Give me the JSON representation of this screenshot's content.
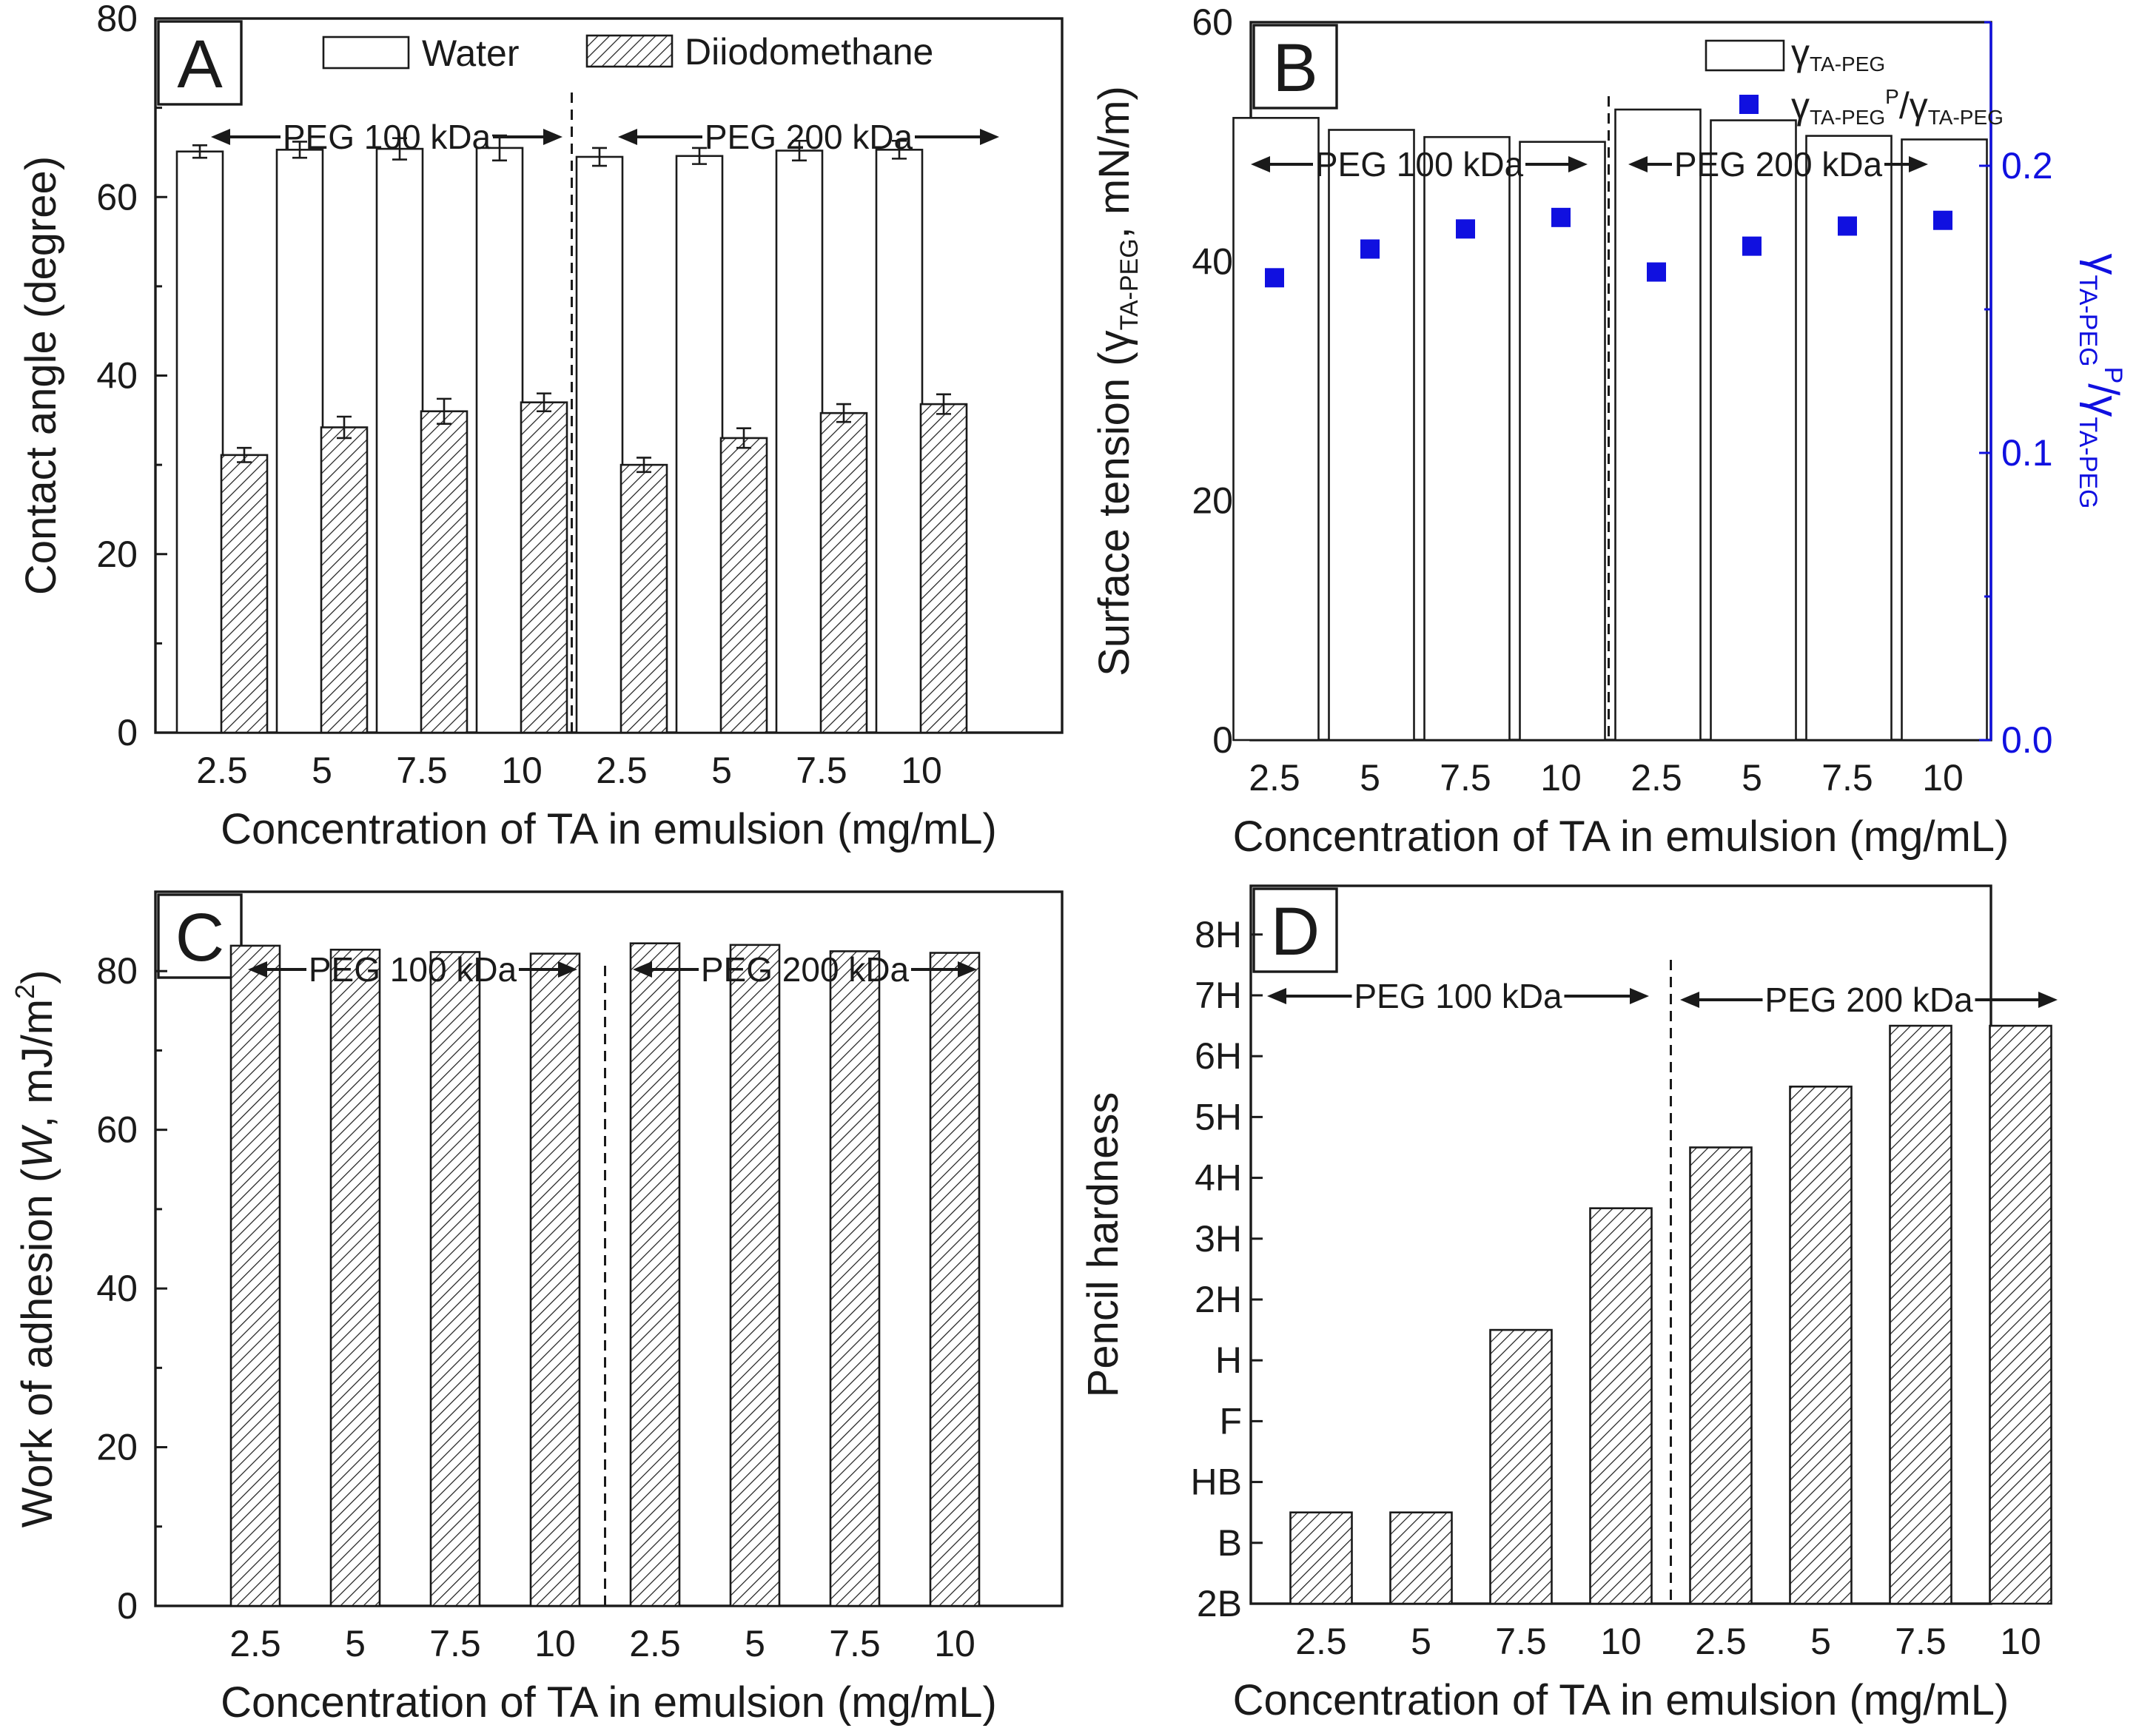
{
  "chart_data": [
    {
      "panel": "A",
      "type": "bar",
      "categories": [
        "2.5",
        "5",
        "7.5",
        "10",
        "2.5",
        "5",
        "7.5",
        "10"
      ],
      "series": [
        {
          "name": "Water",
          "values": [
            65.1,
            65.3,
            65.4,
            65.5,
            64.5,
            64.6,
            65.2,
            65.3
          ],
          "errors": [
            0.7,
            0.9,
            1.2,
            1.4,
            1.0,
            0.9,
            1.1,
            1.0
          ],
          "pattern": "open"
        },
        {
          "name": "Diiodomethane",
          "values": [
            31.1,
            34.2,
            36.0,
            37.0,
            30.0,
            33.0,
            35.8,
            36.8
          ],
          "errors": [
            0.8,
            1.2,
            1.4,
            1.0,
            0.8,
            1.1,
            1.0,
            1.1
          ],
          "pattern": "hatched"
        }
      ],
      "xlabel": "Concentration of TA in emulsion (mg/mL)",
      "ylabel": "Contact angle (degree)",
      "ylim": [
        0,
        80
      ],
      "yticks": [
        "0",
        "20",
        "40",
        "60",
        "80"
      ],
      "groups": [
        "PEG 100 kDa",
        "PEG 200 kDa"
      ]
    },
    {
      "panel": "B",
      "type": "bar",
      "categories": [
        "2.5",
        "5",
        "7.5",
        "10",
        "2.5",
        "5",
        "7.5",
        "10"
      ],
      "series": [
        {
          "name": "γTA-PEG",
          "values": [
            52.0,
            51.0,
            50.4,
            50.0,
            52.7,
            51.8,
            50.5,
            50.2
          ],
          "pattern": "open",
          "axis": "left"
        },
        {
          "name": "γTA-PEG P/γTA-PEG",
          "values": [
            0.161,
            0.171,
            0.178,
            0.182,
            0.163,
            0.172,
            0.179,
            0.181
          ],
          "marker": "square",
          "color": "#1010e0",
          "axis": "right"
        }
      ],
      "legend": {
        "bar": "γ",
        "bar_sub": "TA-PEG",
        "mk1": "γ",
        "mk1_sub": "TA-PEG",
        "mk1_sup": "P",
        "mk_slash": "/",
        "mk2": "γ",
        "mk2_sub": "TA-PEG"
      },
      "xlabel": "Concentration of TA in emulsion (mg/mL)",
      "ylabel_left": {
        "pre": "Surface tension (",
        "sym": "γ",
        "sub": "TA-PEG",
        "post": ", mN/m)"
      },
      "ylabel_right": {
        "sym1": "γ",
        "sub1": "TA-PEG",
        "sup1": "P",
        "slash": "/",
        "sym2": "γ",
        "sub2": "TA-PEG"
      },
      "ylim": [
        0,
        60
      ],
      "y2lim": [
        0.0,
        0.25
      ],
      "yticks": [
        "0",
        "20",
        "40",
        "60"
      ],
      "y2ticks": [
        "0.0",
        "0.1",
        "0.2"
      ],
      "groups": [
        "PEG 100 kDa",
        "PEG 200 kDa"
      ]
    },
    {
      "panel": "C",
      "type": "bar",
      "categories": [
        "2.5",
        "5",
        "7.5",
        "10",
        "2.5",
        "5",
        "7.5",
        "10"
      ],
      "series": [
        {
          "name": "Work of adhesion",
          "values": [
            83.2,
            82.7,
            82.4,
            82.2,
            83.5,
            83.3,
            82.5,
            82.3
          ],
          "pattern": "hatched"
        }
      ],
      "xlabel": "Concentration of TA in emulsion (mg/mL)",
      "ylabel": {
        "pre": "Work of adhesion (",
        "sym": "W",
        "mid": ", mJ/m",
        "sup": "2",
        "post": ")"
      },
      "ylim": [
        0,
        90
      ],
      "yticks": [
        "0",
        "20",
        "40",
        "60",
        "80"
      ],
      "groups": [
        "PEG 100 kDa",
        "PEG 200 kDa"
      ]
    },
    {
      "panel": "D",
      "type": "bar",
      "categories": [
        "2.5",
        "5",
        "7.5",
        "10",
        "2.5",
        "5",
        "7.5",
        "10"
      ],
      "series": [
        {
          "name": "Pencil hardness",
          "values": [
            1.5,
            1.5,
            4.5,
            6.5,
            7.5,
            8.5,
            9.5,
            9.5
          ],
          "pattern": "hatched"
        }
      ],
      "xlabel": "Concentration of TA in emulsion (mg/mL)",
      "ylabel": "Pencil hardness",
      "ylim": [
        0,
        11.8
      ],
      "yticks": [
        "2B",
        "B",
        "HB",
        "F",
        "H",
        "2H",
        "3H",
        "4H",
        "5H",
        "6H",
        "7H",
        "8H"
      ],
      "groups": [
        "PEG 100 kDa",
        "PEG 200 kDa"
      ]
    }
  ]
}
